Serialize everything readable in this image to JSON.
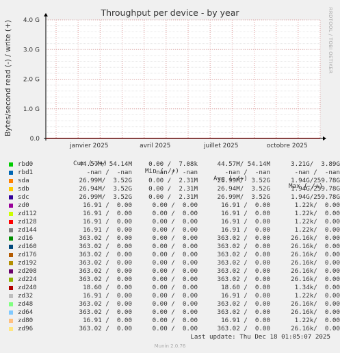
{
  "chart_data": {
    "type": "line",
    "title": "Throughput per device - by year",
    "ylabel": "Bytes/second read (-) / write (+)",
    "ylim": [
      0,
      4.0
    ],
    "yunit": "G",
    "y_ticks": [
      "0.0",
      "1.0 G",
      "2.0 G",
      "3.0 G",
      "4.0 G"
    ],
    "x_ticks": [
      "janvier 2025",
      "avril 2025",
      "juillet 2025",
      "octobre 2025"
    ],
    "grid": true,
    "legend_columns": [
      "Cur (-/+)",
      "Min (-/+)",
      "Avg (-/+)",
      "Max (-/+)"
    ],
    "series": [
      {
        "name": "rbd0",
        "color": "#00cc00",
        "cur": "44.57M/ 54.14M",
        "min": "0.00 /  7.08k",
        "avg": "44.57M/ 54.14M",
        "max": "3.21G/  3.89G"
      },
      {
        "name": "rbd1",
        "color": "#0066b3",
        "cur": "-nan /  -nan",
        "min": "-nan /  -nan",
        "avg": "-nan /  -nan",
        "max": "-nan /  -nan"
      },
      {
        "name": "sda",
        "color": "#ff8000",
        "cur": "26.99M/  3.52G",
        "min": "0.00 /  2.31M",
        "avg": "26.99M/  3.52G",
        "max": "1.94G/259.78G"
      },
      {
        "name": "sdb",
        "color": "#ffcc00",
        "cur": "26.94M/  3.52G",
        "min": "0.00 /  2.31M",
        "avg": "26.94M/  3.52G",
        "max": "1.94G/259.78G"
      },
      {
        "name": "sdc",
        "color": "#330099",
        "cur": "26.99M/  3.52G",
        "min": "0.00 /  2.31M",
        "avg": "26.99M/  3.52G",
        "max": "1.94G/259.78G"
      },
      {
        "name": "zd0",
        "color": "#990099",
        "cur": "16.91 /  0.00",
        "min": "0.00 /  0.00",
        "avg": "16.91 /  0.00",
        "max": "1.22k/  0.00"
      },
      {
        "name": "zd112",
        "color": "#ccff00",
        "cur": "16.91 /  0.00",
        "min": "0.00 /  0.00",
        "avg": "16.91 /  0.00",
        "max": "1.22k/  0.00"
      },
      {
        "name": "zd128",
        "color": "#ff0000",
        "cur": "16.91 /  0.00",
        "min": "0.00 /  0.00",
        "avg": "16.91 /  0.00",
        "max": "1.22k/  0.00"
      },
      {
        "name": "zd144",
        "color": "#808080",
        "cur": "16.91 /  0.00",
        "min": "0.00 /  0.00",
        "avg": "16.91 /  0.00",
        "max": "1.22k/  0.00"
      },
      {
        "name": "zd16",
        "color": "#008f00",
        "cur": "363.02 /  0.00",
        "min": "0.00 /  0.00",
        "avg": "363.02 /  0.00",
        "max": "26.16k/  0.00"
      },
      {
        "name": "zd160",
        "color": "#00487d",
        "cur": "363.02 /  0.00",
        "min": "0.00 /  0.00",
        "avg": "363.02 /  0.00",
        "max": "26.16k/  0.00"
      },
      {
        "name": "zd176",
        "color": "#b35a00",
        "cur": "363.02 /  0.00",
        "min": "0.00 /  0.00",
        "avg": "363.02 /  0.00",
        "max": "26.16k/  0.00"
      },
      {
        "name": "zd192",
        "color": "#b38f00",
        "cur": "363.02 /  0.00",
        "min": "0.00 /  0.00",
        "avg": "363.02 /  0.00",
        "max": "26.16k/  0.00"
      },
      {
        "name": "zd208",
        "color": "#6b006b",
        "cur": "363.02 /  0.00",
        "min": "0.00 /  0.00",
        "avg": "363.02 /  0.00",
        "max": "26.16k/  0.00"
      },
      {
        "name": "zd224",
        "color": "#8fb300",
        "cur": "363.02 /  0.00",
        "min": "0.00 /  0.00",
        "avg": "363.02 /  0.00",
        "max": "26.16k/  0.00"
      },
      {
        "name": "zd240",
        "color": "#b30000",
        "cur": "18.60 /  0.00",
        "min": "0.00 /  0.00",
        "avg": "18.60 /  0.00",
        "max": "1.34k/  0.00"
      },
      {
        "name": "zd32",
        "color": "#bebebe",
        "cur": "16.91 /  0.00",
        "min": "0.00 /  0.00",
        "avg": "16.91 /  0.00",
        "max": "1.22k/  0.00"
      },
      {
        "name": "zd48",
        "color": "#80ff80",
        "cur": "363.02 /  0.00",
        "min": "0.00 /  0.00",
        "avg": "363.02 /  0.00",
        "max": "26.16k/  0.00"
      },
      {
        "name": "zd64",
        "color": "#80c9ff",
        "cur": "363.02 /  0.00",
        "min": "0.00 /  0.00",
        "avg": "363.02 /  0.00",
        "max": "26.16k/  0.00"
      },
      {
        "name": "zd80",
        "color": "#ffc080",
        "cur": "16.91 /  0.00",
        "min": "0.00 /  0.00",
        "avg": "16.91 /  0.00",
        "max": "1.22k/  0.00"
      },
      {
        "name": "zd96",
        "color": "#ffe680",
        "cur": "363.02 /  0.00",
        "min": "0.00 /  0.00",
        "avg": "363.02 /  0.00",
        "max": "26.16k/  0.00"
      }
    ]
  },
  "watermark": "RRDTOOL / TOBI OETIKER",
  "last_update": "Last update: Thu Dec 18 01:05:07 2025",
  "footer": "Munin 2.0.76"
}
